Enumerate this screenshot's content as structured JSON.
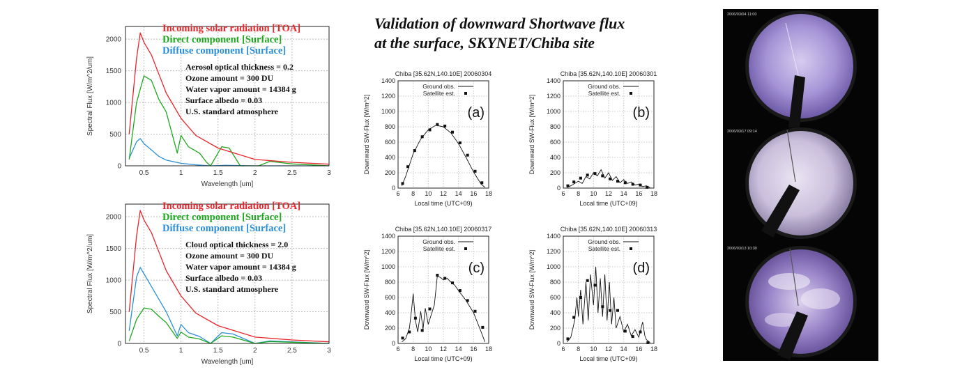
{
  "figure_title": [
    "Validation of downward Shortwave flux",
    "at the surface, SKYNET/Chiba site"
  ],
  "spectral_legend_colors": [
    "#e8252a",
    "#1fa81f",
    "#2b8fd8"
  ],
  "chart_data": [
    {
      "type": "line",
      "id": "spectral-clear",
      "xlabel": "Wavelength [um]",
      "ylabel": "Spectral Flux [W/m^2/um]",
      "xlim": [
        0.25,
        3
      ],
      "ylim": [
        0,
        2200
      ],
      "xticks": [
        "0.5",
        "1",
        "1.5",
        "2",
        "2.5",
        "3"
      ],
      "yticks": [
        "0",
        "500",
        "1000",
        "1500",
        "2000"
      ],
      "legend": [
        "Incoming solar radiation [TOA]",
        "Direct component [Surface]",
        "Diffuse component [Surface]"
      ],
      "annotations": [
        "Aerosol optical thickness = 0.2",
        "Ozone amount = 300 DU",
        "Water vapor amount = 14384 g",
        "Surface albedo = 0.03",
        "U.S. standard atmosphere"
      ],
      "grid": true,
      "series": [
        {
          "x": [
            0.3,
            0.4,
            0.45,
            0.5,
            0.6,
            0.7,
            0.8,
            1.0,
            1.2,
            1.5,
            2.0,
            2.5,
            3.0
          ],
          "values": [
            500,
            1700,
            2100,
            1950,
            1750,
            1450,
            1150,
            750,
            480,
            280,
            100,
            55,
            25
          ]
        },
        {
          "x": [
            0.3,
            0.4,
            0.5,
            0.6,
            0.7,
            0.8,
            0.95,
            1.0,
            1.1,
            1.25,
            1.35,
            1.4,
            1.55,
            1.65,
            1.8,
            2.05,
            2.2,
            2.5,
            3.0
          ],
          "values": [
            100,
            1000,
            1420,
            1350,
            1050,
            850,
            200,
            480,
            300,
            200,
            50,
            0,
            300,
            280,
            0,
            0,
            70,
            30,
            0
          ]
        },
        {
          "x": [
            0.3,
            0.4,
            0.45,
            0.5,
            0.6,
            0.7,
            0.8,
            1.0,
            1.2,
            1.4,
            1.6,
            2.0,
            3.0
          ],
          "values": [
            120,
            380,
            430,
            350,
            250,
            150,
            90,
            40,
            15,
            0,
            8,
            0,
            0
          ]
        }
      ]
    },
    {
      "type": "line",
      "id": "spectral-cloud",
      "xlabel": "Wavelength [um]",
      "ylabel": "Spectral Flux [W/m^2/um]",
      "xlim": [
        0.25,
        3
      ],
      "ylim": [
        0,
        2200
      ],
      "xticks": [
        "0.5",
        "1",
        "1.5",
        "2",
        "2.5",
        "3"
      ],
      "yticks": [
        "0",
        "500",
        "1000",
        "1500",
        "2000"
      ],
      "legend": [
        "Incoming solar radiation [TOA]",
        "Direct component [Surface]",
        "Diffuse component [Surface]"
      ],
      "annotations": [
        "Cloud optical thickness = 2.0",
        "Ozone amount = 300 DU",
        "Water vapor amount = 14384 g",
        "Surface albedo = 0.03",
        "U.S. standard atmosphere"
      ],
      "grid": true,
      "series": [
        {
          "x": [
            0.3,
            0.4,
            0.45,
            0.5,
            0.6,
            0.7,
            0.8,
            1.0,
            1.2,
            1.5,
            2.0,
            2.5,
            3.0
          ],
          "values": [
            500,
            1700,
            2100,
            1950,
            1750,
            1450,
            1150,
            750,
            480,
            280,
            100,
            55,
            25
          ]
        },
        {
          "x": [
            0.3,
            0.4,
            0.5,
            0.6,
            0.7,
            0.8,
            0.95,
            1.0,
            1.1,
            1.25,
            1.4,
            1.55,
            1.7,
            2.0,
            2.2,
            3.0
          ],
          "values": [
            40,
            380,
            560,
            540,
            430,
            330,
            80,
            180,
            100,
            70,
            0,
            120,
            100,
            0,
            30,
            0
          ]
        },
        {
          "x": [
            0.3,
            0.4,
            0.45,
            0.5,
            0.6,
            0.7,
            0.8,
            0.95,
            1.0,
            1.1,
            1.25,
            1.4,
            1.55,
            1.7,
            2.0,
            2.2,
            3.0
          ],
          "values": [
            200,
            1050,
            1200,
            1100,
            900,
            700,
            500,
            120,
            300,
            170,
            110,
            0,
            170,
            150,
            0,
            40,
            0
          ]
        }
      ]
    },
    {
      "type": "line",
      "id": "flux-a",
      "title": "Chiba [35.62N,140.10E] 20060304",
      "panel_label": "(a)",
      "xlabel": "Local time (UTC+09)",
      "ylabel": "Downward SW-Flux [W/m^2]",
      "xlim": [
        6,
        18
      ],
      "ylim": [
        0,
        1400
      ],
      "xticks": [
        "6",
        "8",
        "10",
        "12",
        "14",
        "16",
        "18"
      ],
      "yticks": [
        "0",
        "200",
        "400",
        "600",
        "800",
        "1000",
        "1200",
        "1400"
      ],
      "legend": [
        "Ground obs.",
        "Satellite est."
      ],
      "grid": true,
      "series": [
        {
          "x": [
            6.5,
            7,
            8,
            9,
            10,
            11,
            12,
            13,
            14,
            15,
            16,
            17,
            17.5
          ],
          "values": [
            30,
            150,
            450,
            640,
            760,
            820,
            800,
            720,
            580,
            400,
            210,
            50,
            10
          ]
        },
        {
          "x": [
            6.6,
            7.3,
            8.2,
            9.2,
            10.2,
            11.2,
            12.2,
            13.2,
            14.2,
            15.2,
            16.2,
            17.1
          ],
          "values": [
            60,
            280,
            490,
            670,
            760,
            830,
            810,
            730,
            590,
            430,
            220,
            70
          ]
        }
      ]
    },
    {
      "type": "line",
      "id": "flux-b",
      "title": "Chiba [35.62N,140.10E] 20060301",
      "panel_label": "(b)",
      "xlabel": "Local time (UTC+09)",
      "ylabel": "Downward SW-Flux [W/m^2]",
      "xlim": [
        6,
        18
      ],
      "ylim": [
        0,
        1400
      ],
      "xticks": [
        "6",
        "8",
        "10",
        "12",
        "14",
        "16",
        "18"
      ],
      "yticks": [
        "0",
        "200",
        "400",
        "600",
        "800",
        "1000",
        "1200",
        "1400"
      ],
      "legend": [
        "Ground obs.",
        "Satellite est."
      ],
      "grid": true,
      "series": [
        {
          "x": [
            6.5,
            7,
            7.5,
            8,
            8.5,
            9,
            9.5,
            10,
            10.5,
            11,
            11.5,
            12,
            12.5,
            13,
            13.5,
            14,
            14.5,
            15,
            15.5,
            16,
            16.5,
            17,
            17.5
          ],
          "values": [
            10,
            30,
            60,
            90,
            60,
            150,
            120,
            200,
            160,
            240,
            130,
            200,
            100,
            150,
            70,
            110,
            60,
            80,
            40,
            50,
            20,
            30,
            5
          ]
        },
        {
          "x": [
            6.6,
            7.4,
            8.3,
            9.2,
            10.2,
            11.2,
            12.2,
            13.2,
            14.2,
            15.2,
            16.2,
            17.1
          ],
          "values": [
            30,
            80,
            130,
            170,
            190,
            160,
            120,
            90,
            70,
            50,
            40,
            10
          ]
        }
      ]
    },
    {
      "type": "line",
      "id": "flux-c",
      "title": "Chiba [35.62N,140.10E] 20060317",
      "panel_label": "(c)",
      "xlabel": "Local time (UTC+09)",
      "ylabel": "Downward SW-Flux [W/m^2]",
      "xlim": [
        6,
        18
      ],
      "ylim": [
        0,
        1400
      ],
      "xticks": [
        "6",
        "8",
        "10",
        "12",
        "14",
        "16",
        "18"
      ],
      "yticks": [
        "0",
        "200",
        "400",
        "600",
        "800",
        "1000",
        "1200",
        "1400"
      ],
      "legend": [
        "Ground obs.",
        "Satellite est."
      ],
      "grid": true,
      "series": [
        {
          "x": [
            6.5,
            7,
            7.5,
            7.8,
            8,
            8.3,
            8.6,
            9,
            9.3,
            9.6,
            10,
            10.4,
            10.8,
            11.2,
            11.6,
            12,
            12.5,
            13,
            13.5,
            14,
            15,
            16,
            17,
            17.5
          ],
          "values": [
            20,
            60,
            200,
            450,
            650,
            300,
            150,
            420,
            180,
            460,
            250,
            380,
            500,
            880,
            860,
            830,
            850,
            800,
            760,
            690,
            560,
            400,
            150,
            20
          ]
        },
        {
          "x": [
            6.6,
            7.5,
            8.3,
            9.2,
            10.2,
            11.2,
            12.2,
            13.2,
            14.2,
            15.2,
            16.2,
            17.2
          ],
          "values": [
            70,
            150,
            330,
            170,
            450,
            890,
            850,
            790,
            690,
            560,
            420,
            210
          ]
        }
      ]
    },
    {
      "type": "line",
      "id": "flux-d",
      "title": "Chiba [35.62N,140.10E] 20060313",
      "panel_label": "(d)",
      "xlabel": "Local time (UTC+09)",
      "ylabel": "Downward SW-Flux [W/m^2]",
      "xlim": [
        6,
        18
      ],
      "ylim": [
        0,
        1400
      ],
      "xticks": [
        "6",
        "8",
        "10",
        "12",
        "14",
        "16",
        "18"
      ],
      "yticks": [
        "0",
        "200",
        "400",
        "600",
        "800",
        "1000",
        "1200",
        "1400"
      ],
      "legend": [
        "Ground obs.",
        "Satellite est."
      ],
      "grid": true,
      "series": [
        {
          "x": [
            6.5,
            7,
            7.5,
            7.8,
            8,
            8.3,
            8.6,
            9,
            9.3,
            9.6,
            10,
            10.3,
            10.6,
            10.9,
            11.2,
            11.5,
            11.8,
            12.1,
            12.4,
            12.7,
            13,
            13.5,
            14,
            14.5,
            15,
            15.5,
            16,
            16.5,
            16.8,
            17,
            17.5
          ],
          "values": [
            20,
            80,
            300,
            600,
            350,
            700,
            250,
            800,
            300,
            900,
            500,
            1000,
            400,
            850,
            350,
            900,
            300,
            800,
            250,
            600,
            200,
            350,
            150,
            250,
            100,
            180,
            80,
            280,
            100,
            50,
            10
          ]
        },
        {
          "x": [
            6.6,
            7.4,
            8.3,
            9.2,
            10.2,
            11.2,
            12.2,
            13.2,
            14.2,
            15.2,
            16.2,
            17.2
          ],
          "values": [
            60,
            340,
            600,
            820,
            760,
            480,
            430,
            430,
            160,
            90,
            150,
            10
          ]
        }
      ]
    }
  ],
  "photos": [
    {
      "timestamp": "2006/03/04 11:00"
    },
    {
      "timestamp": "2006/03/17 09:14"
    },
    {
      "timestamp": "2006/03/13 10:30"
    }
  ]
}
